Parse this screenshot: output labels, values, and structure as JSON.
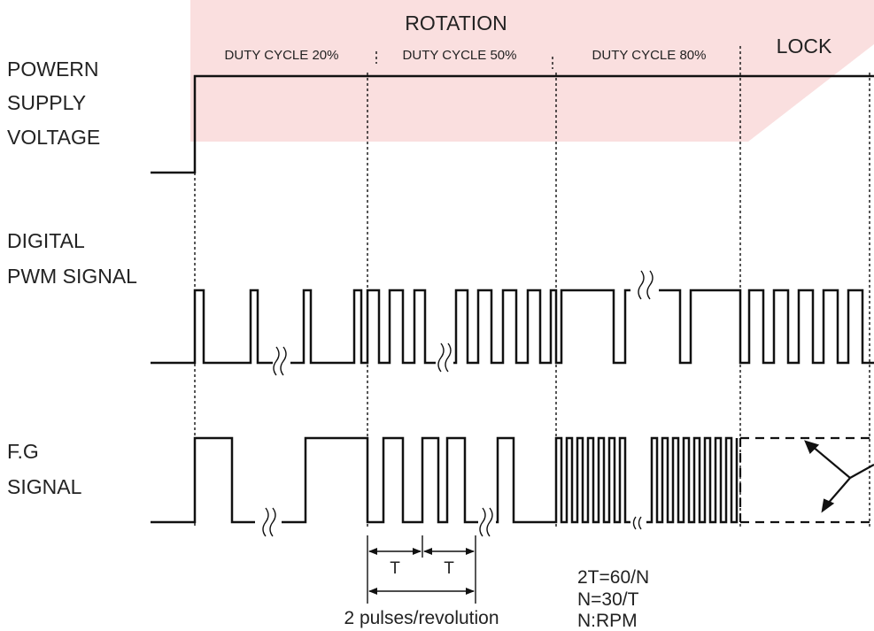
{
  "diagram": {
    "rotation_header": "ROTATION",
    "lock_header": "LOCK",
    "duty_labels": [
      "DUTY CYCLE 20%",
      "DUTY CYCLE 50%",
      "DUTY CYCLE 80%"
    ],
    "rows": {
      "power": [
        "POWERN",
        "SUPPLY",
        "VOLTAGE"
      ],
      "pwm": [
        "DIGITAL",
        "PWM SIGNAL"
      ],
      "fg": [
        "F.G",
        "SIGNAL"
      ]
    },
    "period_label": "T",
    "pulses_caption": "2 pulses/revolution",
    "formulas": [
      "2T=60/N",
      "N=30/T",
      "N:RPM"
    ],
    "colors": {
      "ink": "#111111",
      "text": "#222222",
      "watermark": "#e23b3b"
    }
  }
}
